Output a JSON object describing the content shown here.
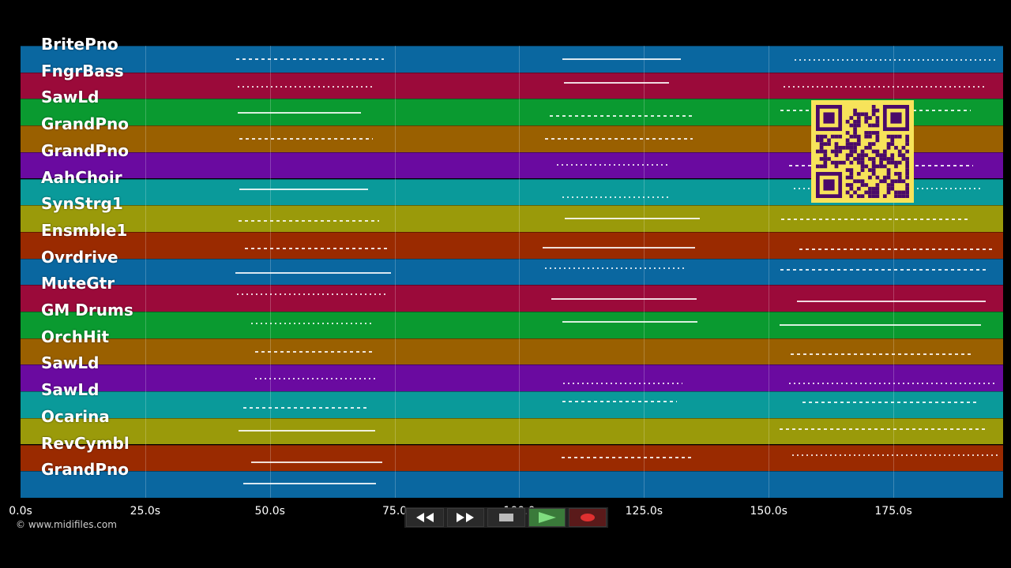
{
  "tracks": [
    {
      "name": "BritePno",
      "color": "#0a67a0"
    },
    {
      "name": "FngrBass",
      "color": "#9b0a3a"
    },
    {
      "name": "SawLd",
      "color": "#0a9a30"
    },
    {
      "name": "GrandPno",
      "color": "#9a6000"
    },
    {
      "name": "GrandPno",
      "color": "#6a0aa0"
    },
    {
      "name": "AahChoir",
      "color": "#0a9a9a"
    },
    {
      "name": "SynStrg1",
      "color": "#9a9a0a"
    },
    {
      "name": "Ensmble1",
      "color": "#9a2a00"
    },
    {
      "name": "Ovrdrive",
      "color": "#0a67a0"
    },
    {
      "name": "MuteGtr",
      "color": "#9b0a3a"
    },
    {
      "name": "GM Drums",
      "color": "#0a9a30"
    },
    {
      "name": "OrchHit",
      "color": "#9a6000"
    },
    {
      "name": "SawLd",
      "color": "#6a0aa0"
    },
    {
      "name": "SawLd",
      "color": "#0a9a9a"
    },
    {
      "name": "Ocarina",
      "color": "#9a9a0a"
    },
    {
      "name": "RevCymbl",
      "color": "#9a2a00"
    },
    {
      "name": "GrandPno",
      "color": "#0a67a0"
    }
  ],
  "timeline": {
    "ticks": [
      "0.0s",
      "25.0s",
      "50.0s",
      "75.0",
      "100.0",
      "125.0s",
      "150.0s",
      "175.0s"
    ],
    "tick_seconds": [
      0,
      25,
      50,
      75,
      100,
      125,
      150,
      175
    ],
    "duration_seconds": 197
  },
  "credit": "© www.midifiles.com",
  "transport": {
    "rewind": "rewind-icon",
    "forward": "fast-forward-icon",
    "stop": "stop-icon",
    "play": "play-icon",
    "record": "record-icon"
  },
  "colors": {
    "background": "#000000",
    "qr_background": "#f7e35a",
    "qr_foreground": "#4a0a6a"
  }
}
